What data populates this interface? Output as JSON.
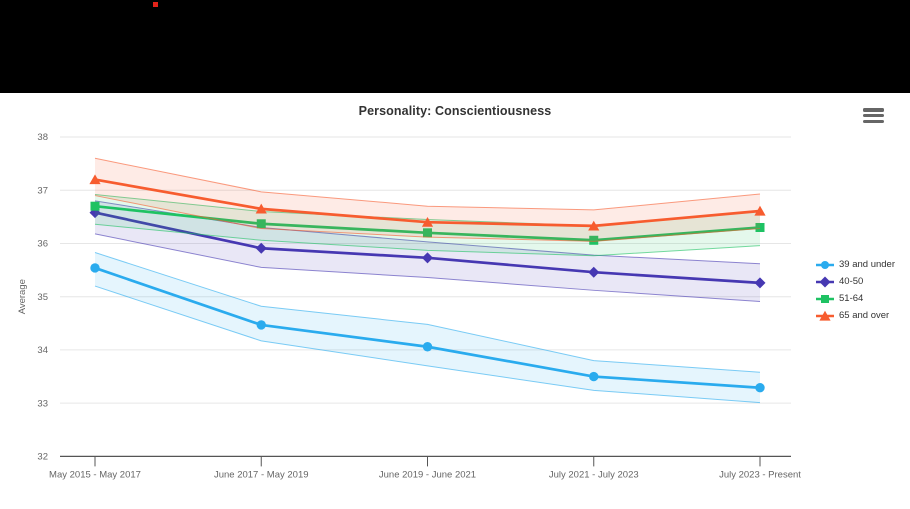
{
  "page": {
    "background_color": "#ffffff",
    "top_bar_color": "#000000",
    "red_dot_color": "#e2231a"
  },
  "toolbar": {
    "menu_icon": "hamburger-icon",
    "menu_icon_color": "#666666"
  },
  "colors": {
    "title_text": "#333333",
    "axis_label_text": "#666666",
    "legend_text": "#333333",
    "gridline": "#e6e6e6",
    "axis_line": "#555555"
  },
  "chart_data": {
    "type": "line",
    "title": "Personality: Conscientiousness",
    "xlabel": "",
    "ylabel": "Average",
    "ylim": [
      32,
      38
    ],
    "y_ticks": [
      32,
      33,
      34,
      35,
      36,
      37,
      38
    ],
    "grid": true,
    "legend_position": "right",
    "bands": "each series has a shaded confidence band with thin upper/lower boundary lines",
    "categories": [
      "May 2015 - May 2017",
      "June 2017 - May 2019",
      "June 2019 - June 2021",
      "July 2021 - July 2023",
      "July 2023 - Present"
    ],
    "series": [
      {
        "name": "39 and under",
        "color": "#2aabee",
        "marker": "circle",
        "values": [
          35.54,
          34.47,
          34.06,
          33.5,
          33.29
        ],
        "band_upper": [
          35.83,
          34.82,
          34.48,
          33.8,
          33.58
        ],
        "band_lower": [
          35.2,
          34.17,
          33.7,
          33.24,
          33.01
        ]
      },
      {
        "name": "40-50",
        "color": "#4638b2",
        "marker": "diamond",
        "values": [
          36.58,
          35.91,
          35.73,
          35.46,
          35.26
        ],
        "band_upper": [
          36.8,
          36.3,
          36.03,
          35.78,
          35.62
        ],
        "band_lower": [
          36.18,
          35.55,
          35.36,
          35.12,
          34.91
        ]
      },
      {
        "name": "51-64",
        "color": "#1ec263",
        "marker": "square",
        "values": [
          36.7,
          36.37,
          36.2,
          36.06,
          36.3
        ],
        "band_upper": [
          36.92,
          36.6,
          36.45,
          36.33,
          36.62
        ],
        "band_lower": [
          36.36,
          36.06,
          35.87,
          35.77,
          35.96
        ]
      },
      {
        "name": "65 and over",
        "color": "#f75c2f",
        "marker": "triangle",
        "values": [
          37.2,
          36.65,
          36.4,
          36.33,
          36.61
        ],
        "band_upper": [
          37.6,
          36.97,
          36.7,
          36.63,
          36.93
        ],
        "band_lower": [
          36.9,
          36.28,
          36.12,
          36.04,
          36.28
        ]
      }
    ]
  }
}
